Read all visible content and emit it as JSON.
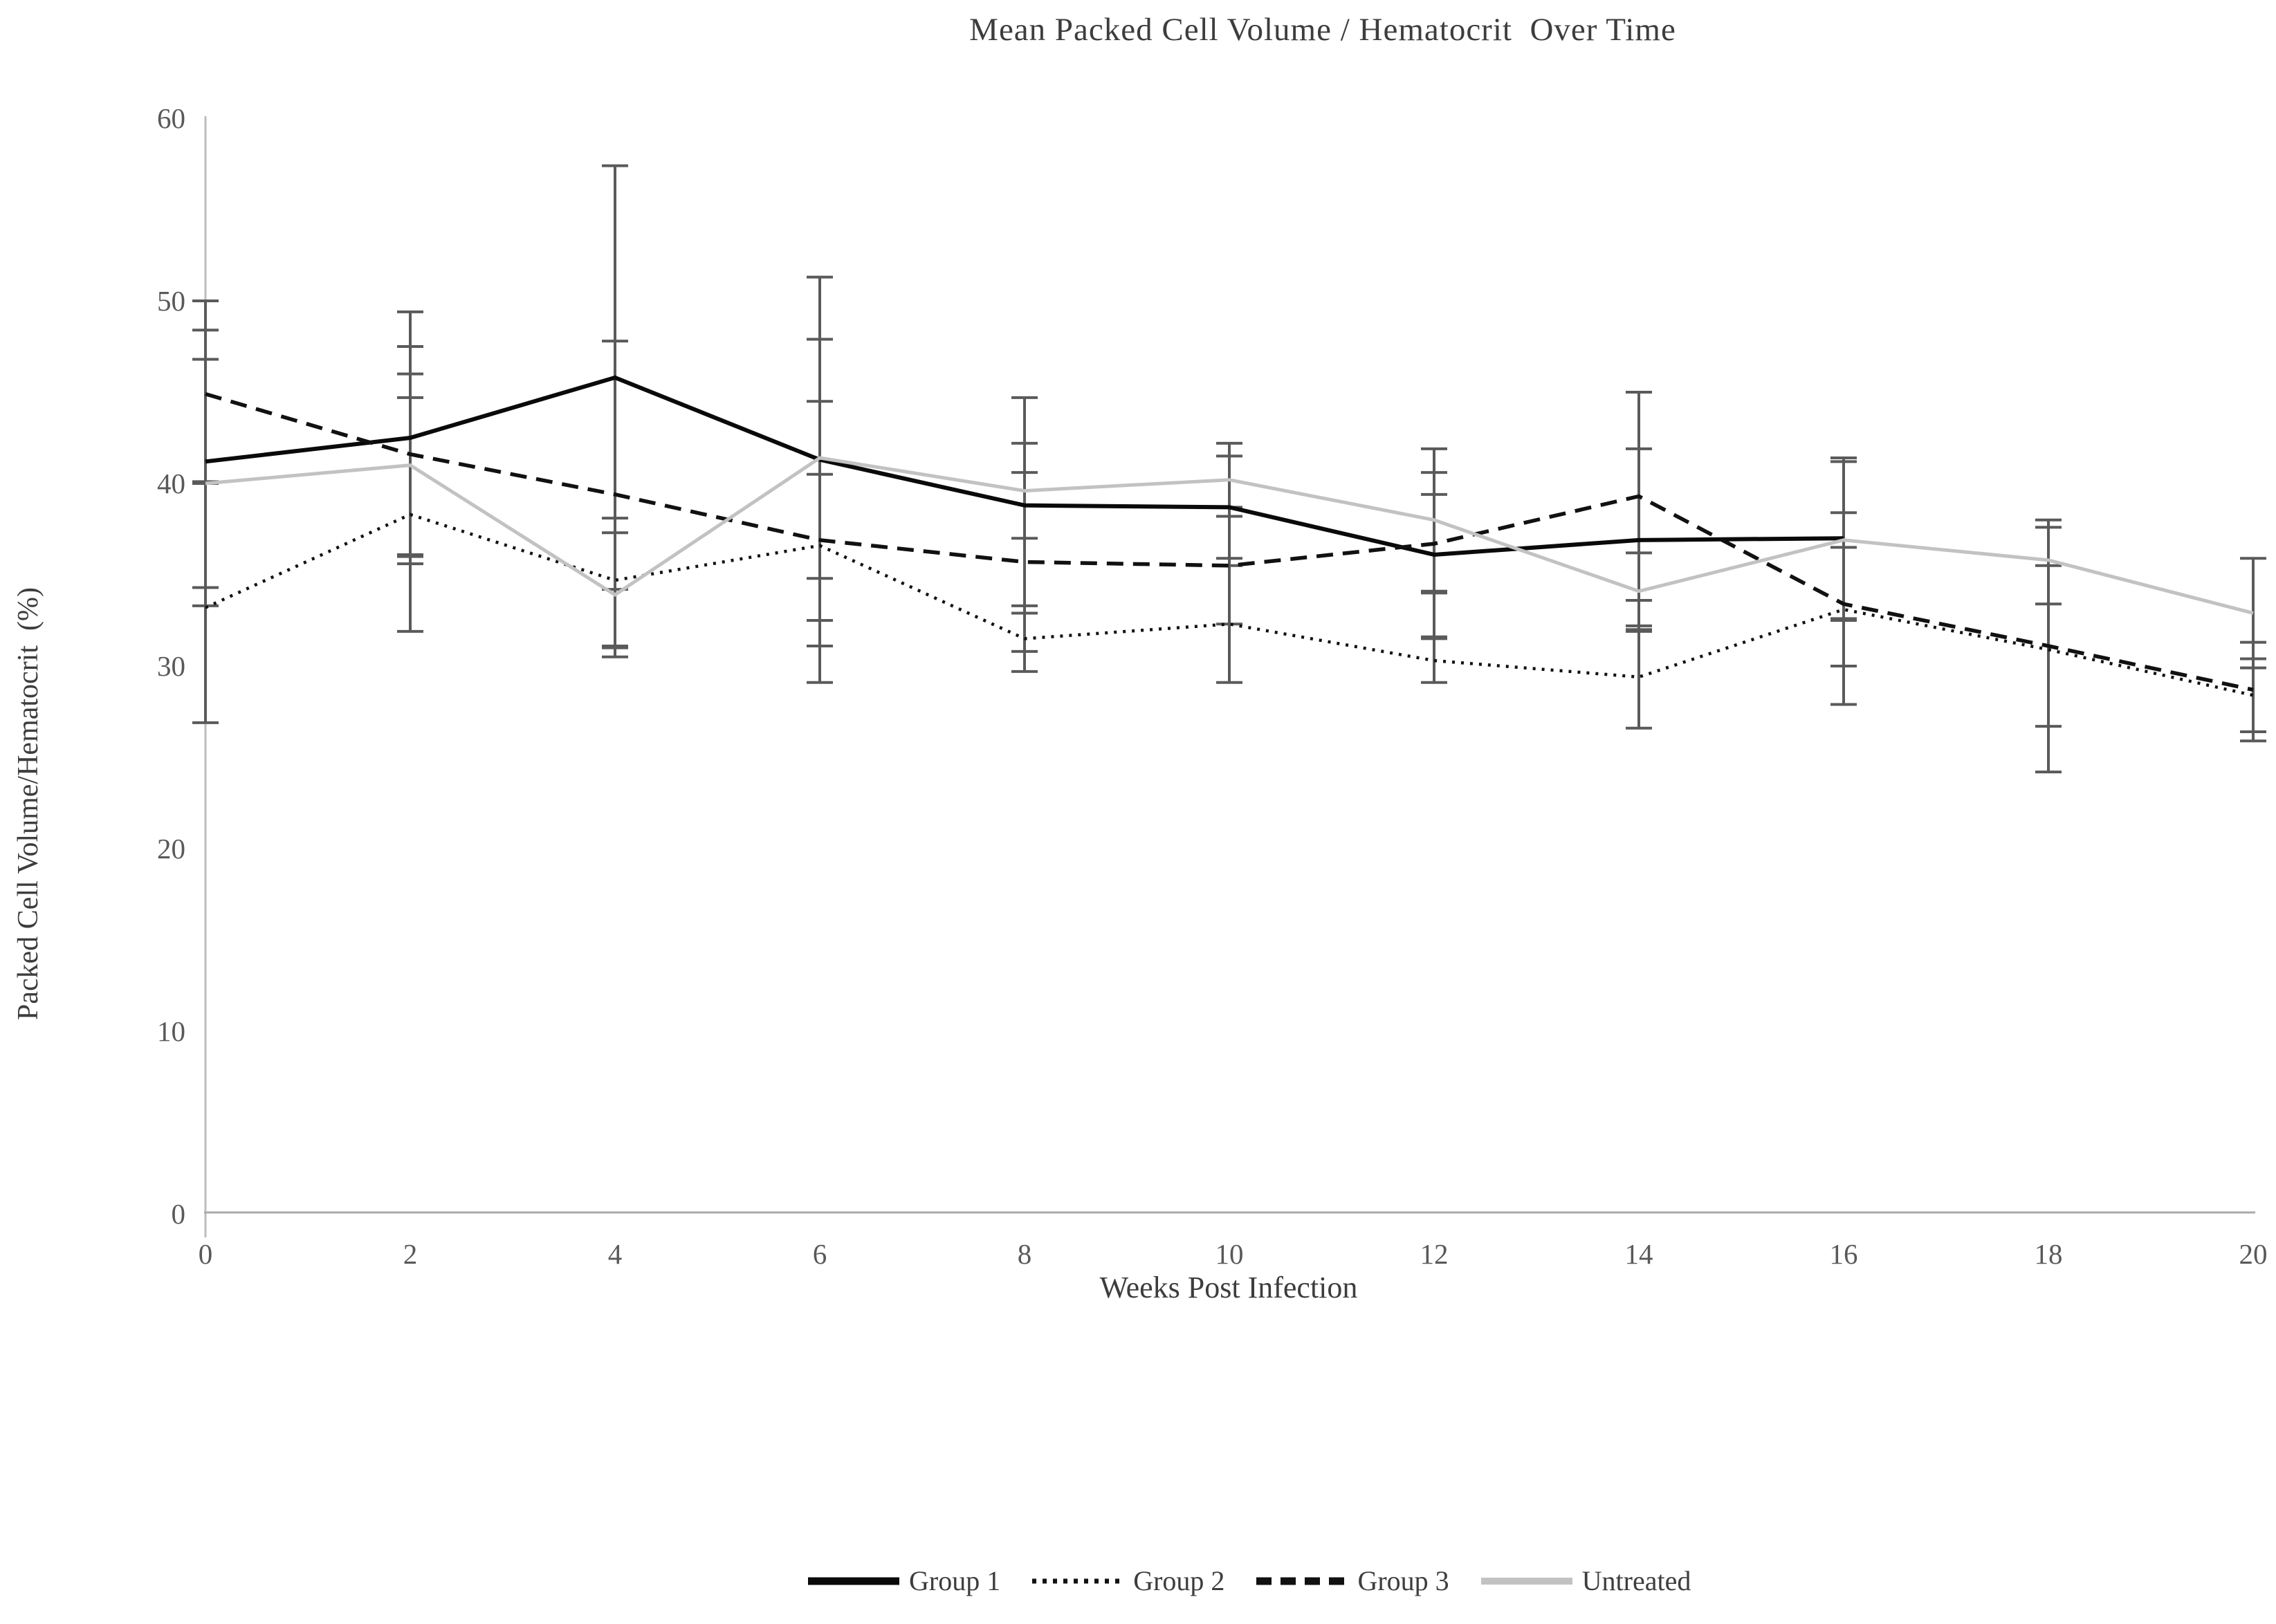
{
  "chart_data": {
    "type": "line",
    "title": "Mean Packed Cell Volume / Hematocrit  Over Time",
    "xlabel": "Weeks Post Infection",
    "ylabel": "Packed Cell Volume/Hematocrit  (%)",
    "x": [
      0,
      2,
      4,
      6,
      8,
      10,
      12,
      14,
      16,
      18,
      20
    ],
    "x_ticks": [
      0,
      2,
      4,
      6,
      8,
      10,
      12,
      14,
      16,
      18,
      20
    ],
    "y_ticks": [
      0,
      10,
      20,
      30,
      40,
      50,
      60
    ],
    "xlim": [
      0,
      20
    ],
    "ylim": [
      0,
      60
    ],
    "grid": false,
    "legend_position": "bottom",
    "axis_color": "#aaaaaa",
    "error_bar_color": "#5a5a5a",
    "series": [
      {
        "name": "Group 1",
        "style": "solid",
        "color": "#0a0a0a",
        "values": [
          41.2,
          42.5,
          45.8,
          41.3,
          38.8,
          38.7,
          36.1,
          36.9,
          37.0,
          null,
          null
        ],
        "err_lo": [
          34.3,
          35.6,
          34.2,
          31.1,
          32.9,
          35.9,
          31.6,
          31.9,
          32.5,
          null,
          null
        ],
        "err_hi": [
          48.4,
          49.4,
          57.4,
          51.3,
          44.7,
          41.5,
          40.6,
          41.9,
          41.4,
          null,
          null
        ]
      },
      {
        "name": "Group 2",
        "style": "dotted",
        "color": "#111111",
        "values": [
          33.2,
          38.3,
          34.7,
          36.6,
          31.5,
          32.3,
          30.3,
          29.4,
          33.1,
          30.9,
          28.4
        ],
        "err_lo": [
          26.9,
          31.9,
          31.1,
          32.5,
          29.7,
          29.1,
          29.1,
          26.6,
          27.9,
          24.2,
          26.4
        ],
        "err_hi": [
          40.0,
          44.7,
          38.1,
          40.5,
          33.3,
          35.5,
          31.5,
          32.2,
          38.4,
          37.6,
          30.4
        ]
      },
      {
        "name": "Group 3",
        "style": "dashed",
        "color": "#111111",
        "values": [
          44.9,
          41.6,
          39.4,
          36.9,
          35.7,
          35.5,
          36.7,
          39.3,
          33.4,
          31.1,
          28.7
        ],
        "err_lo": [
          40.1,
          36.1,
          31.0,
          29.1,
          30.8,
          32.3,
          34.0,
          33.6,
          30.0,
          26.7,
          25.9
        ],
        "err_hi": [
          50.0,
          47.5,
          47.8,
          44.5,
          40.6,
          38.7,
          39.4,
          45.0,
          36.5,
          35.5,
          31.3
        ]
      },
      {
        "name": "Untreated",
        "style": "solid",
        "color": "#c2c2c2",
        "values": [
          40.0,
          41.0,
          33.9,
          41.4,
          39.6,
          40.2,
          38.0,
          34.1,
          36.9,
          35.8,
          32.9
        ],
        "err_lo": [
          33.3,
          36.0,
          30.5,
          34.8,
          37.0,
          38.2,
          34.1,
          32.0,
          32.6,
          33.4,
          29.9
        ],
        "err_hi": [
          46.8,
          46.0,
          37.3,
          47.9,
          42.2,
          42.2,
          41.9,
          36.2,
          41.2,
          38.0,
          35.9
        ]
      }
    ]
  }
}
